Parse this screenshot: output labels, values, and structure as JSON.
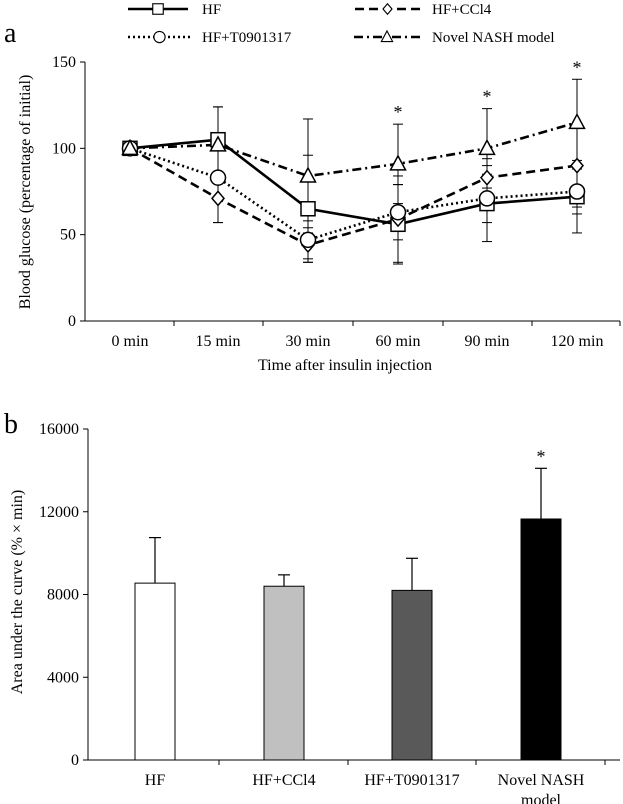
{
  "panels": {
    "a_label": "a",
    "b_label": "b"
  },
  "chart_data": [
    {
      "type": "line",
      "panel": "a",
      "xlabel": "Time after insulin injection",
      "ylabel": "Blood glucose (percentage of initial)",
      "categories": [
        "0 min",
        "15 min",
        "30 min",
        "60 min",
        "90 min",
        "120 min"
      ],
      "ylim": [
        0,
        150
      ],
      "yticks": [
        0,
        50,
        100,
        150
      ],
      "grid": false,
      "legend_position": "top",
      "series": [
        {
          "name": "HF",
          "line": "solid",
          "marker": "square",
          "values": [
            100,
            105,
            65,
            56,
            68,
            72
          ],
          "errors": [
            0,
            19,
            31,
            23,
            22,
            21
          ]
        },
        {
          "name": "HF+CCl4",
          "line": "dashed",
          "marker": "diamond",
          "values": [
            100,
            71,
            44,
            59,
            83,
            90
          ],
          "errors": [
            0,
            14,
            10,
            25,
            11,
            24
          ]
        },
        {
          "name": "HF+T0901317",
          "line": "dotted",
          "marker": "circle",
          "values": [
            100,
            83,
            47,
            63,
            71,
            75
          ],
          "errors": [
            0,
            26,
            11,
            16,
            14,
            13
          ]
        },
        {
          "name": "Novel NASH model",
          "line": "dashdot",
          "marker": "triangle",
          "values": [
            100,
            102,
            84,
            91,
            100,
            115
          ],
          "errors": [
            0,
            22,
            33,
            23,
            23,
            25
          ]
        }
      ],
      "significance": [
        {
          "category": "60 min",
          "mark": "*"
        },
        {
          "category": "90 min",
          "mark": "*"
        },
        {
          "category": "120 min",
          "mark": "*"
        }
      ]
    },
    {
      "type": "bar",
      "panel": "b",
      "xlabel": "",
      "ylabel": "Area under the curve (% × min)",
      "categories": [
        "HF",
        "HF+CCl4",
        "HF+T0901317",
        "Novel NASH model"
      ],
      "category_lines": [
        [
          "HF"
        ],
        [
          "HF+CCl4"
        ],
        [
          "HF+T0901317"
        ],
        [
          "Novel NASH",
          "model"
        ]
      ],
      "values": [
        8550,
        8400,
        8200,
        11650
      ],
      "errors": [
        2200,
        550,
        1550,
        2450
      ],
      "colors": [
        "#ffffff",
        "#c0c0c0",
        "#595959",
        "#000000"
      ],
      "ylim": [
        0,
        16000
      ],
      "yticks": [
        0,
        4000,
        8000,
        12000,
        16000
      ],
      "grid": false,
      "significance": [
        {
          "category": "Novel NASH model",
          "mark": "*"
        }
      ]
    }
  ]
}
